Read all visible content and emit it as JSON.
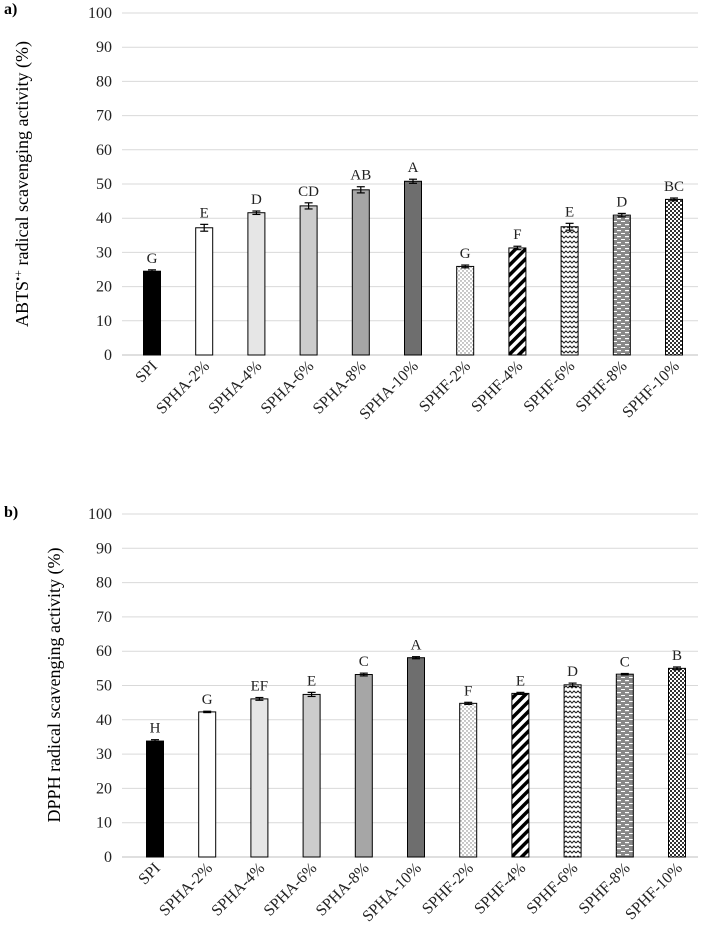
{
  "chart_data": [
    {
      "type": "bar",
      "panel_label": "a)",
      "ylabel": "ABTS•+ radical scavenging activity (%)",
      "ylabel_main": "ABTS",
      "ylabel_sup": "•+",
      "ylabel_rest": " radical scavenging activity (%)",
      "ylim": [
        0,
        100
      ],
      "yticks": [
        0,
        10,
        20,
        30,
        40,
        50,
        60,
        70,
        80,
        90,
        100
      ],
      "grid": true,
      "categories": [
        "SPI",
        "SPHA-2%",
        "SPHA-4%",
        "SPHA-6%",
        "SPHA-8%",
        "SPHA-10%",
        "SPHF-2%",
        "SPHF-4%",
        "SPHF-6%",
        "SPHF-8%",
        "SPHF-10%"
      ],
      "values": [
        24.5,
        37.2,
        41.6,
        43.6,
        48.3,
        50.8,
        25.9,
        31.3,
        37.5,
        40.9,
        45.5
      ],
      "errors": [
        0.4,
        1.0,
        0.5,
        0.9,
        0.9,
        0.6,
        0.4,
        0.5,
        1.0,
        0.5,
        0.4
      ],
      "letters": [
        "G",
        "E",
        "D",
        "CD",
        "AB",
        "A",
        "G",
        "F",
        "E",
        "D",
        "BC"
      ]
    },
    {
      "type": "bar",
      "panel_label": "b)",
      "ylabel": "DPPH radical scavenging activity (%)",
      "ylim": [
        0,
        100
      ],
      "yticks": [
        0,
        10,
        20,
        30,
        40,
        50,
        60,
        70,
        80,
        90,
        100
      ],
      "grid": true,
      "categories": [
        "SPI",
        "SPHA-2%",
        "SPHA-4%",
        "SPHA-6%",
        "SPHA-8%",
        "SPHA-10%",
        "SPHF-2%",
        "SPHF-4%",
        "SPHF-6%",
        "SPHF-8%",
        "SPHF-10%"
      ],
      "values": [
        33.8,
        42.3,
        46.1,
        47.4,
        53.2,
        58.1,
        44.8,
        47.7,
        50.2,
        53.3,
        55.0
      ],
      "errors": [
        0.4,
        0.2,
        0.4,
        0.6,
        0.4,
        0.3,
        0.3,
        0.3,
        0.5,
        0.2,
        0.4
      ],
      "letters": [
        "H",
        "G",
        "EF",
        "E",
        "C",
        "A",
        "F",
        "E",
        "D",
        "C",
        "B"
      ]
    }
  ],
  "bar_styles": [
    {
      "fill": "#000000",
      "pattern": "solid"
    },
    {
      "fill": "#ffffff",
      "pattern": "solid"
    },
    {
      "fill": "#e6e6e6",
      "pattern": "solid"
    },
    {
      "fill": "#cccccc",
      "pattern": "solid"
    },
    {
      "fill": "#a6a6a6",
      "pattern": "solid"
    },
    {
      "fill": "#6e6e6e",
      "pattern": "solid"
    },
    {
      "fill": "#ffffff",
      "pattern": "dots"
    },
    {
      "fill": "#ffffff",
      "pattern": "diagonal"
    },
    {
      "fill": "#ffffff",
      "pattern": "wave"
    },
    {
      "fill": "#888888",
      "pattern": "dashes"
    },
    {
      "fill": "#444444",
      "pattern": "check"
    }
  ],
  "colors": {
    "grid": "#d9d9d9",
    "axis": "#bfbfbf",
    "bar_border": "#000000"
  }
}
